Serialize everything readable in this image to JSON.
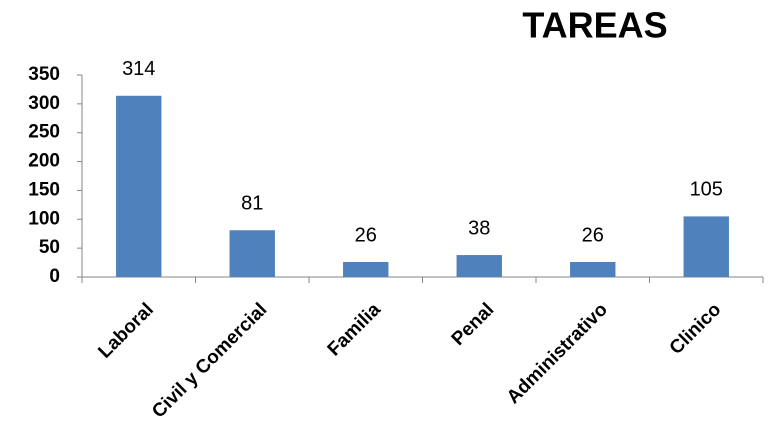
{
  "chart_data": {
    "type": "bar",
    "title": "TAREAS",
    "categories": [
      "Laboral",
      "Civil y Comercial",
      "Familia",
      "Penal",
      "Administrativo",
      "Clinico"
    ],
    "values": [
      314,
      81,
      26,
      38,
      26,
      105
    ],
    "color": "#4f81bd",
    "ylim": [
      0,
      350
    ],
    "yticks": [
      0,
      50,
      100,
      150,
      200,
      250,
      300,
      350
    ],
    "grid": false
  }
}
